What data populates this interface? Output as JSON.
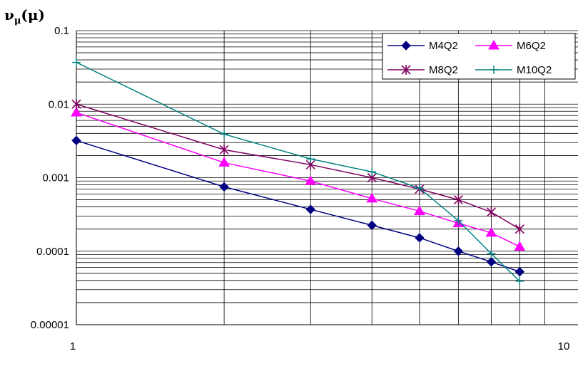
{
  "chart_data": {
    "type": "line",
    "title": "",
    "xlabel": "",
    "ylabel": {
      "main": "ν",
      "sub": "μ",
      "arg": "(μ)"
    },
    "x_scale": "log",
    "y_scale": "log",
    "xlim": [
      1,
      10
    ],
    "ylim": [
      1e-05,
      0.1
    ],
    "x_tick_labels": [
      "1",
      "10"
    ],
    "y_tick_labels": [
      "0.1",
      "0.01",
      "0.001",
      "0.0001",
      "0.00001"
    ],
    "grid": true,
    "legend_position": "top-right",
    "series": [
      {
        "name": "M4Q2",
        "color": "#000080",
        "marker": "diamond",
        "x": [
          1,
          2,
          3,
          4,
          5,
          6,
          7,
          8
        ],
        "y": [
          0.0032,
          0.00075,
          0.00037,
          0.000225,
          0.000152,
          0.0001,
          7.15e-05,
          5.25e-05
        ]
      },
      {
        "name": "M6Q2",
        "color": "#ff00ff",
        "marker": "triangle",
        "x": [
          1,
          2,
          3,
          4,
          5,
          6,
          7,
          8
        ],
        "y": [
          0.0077,
          0.0016,
          0.0009,
          0.00052,
          0.00035,
          0.00024,
          0.000178,
          0.000115
        ]
      },
      {
        "name": "M8Q2",
        "color": "#800060",
        "marker": "star",
        "x": [
          1,
          2,
          3,
          4,
          5,
          6,
          7,
          8
        ],
        "y": [
          0.01,
          0.0024,
          0.0015,
          0.001,
          0.0007,
          0.0005,
          0.00034,
          0.0002
        ]
      },
      {
        "name": "M10Q2",
        "color": "#008080",
        "marker": "plus",
        "x": [
          1,
          2,
          3,
          4,
          5,
          6,
          7,
          8
        ],
        "y": [
          0.037,
          0.0039,
          0.0018,
          0.0012,
          0.00072,
          0.00026,
          9.25e-05,
          3.9e-05
        ]
      }
    ]
  }
}
